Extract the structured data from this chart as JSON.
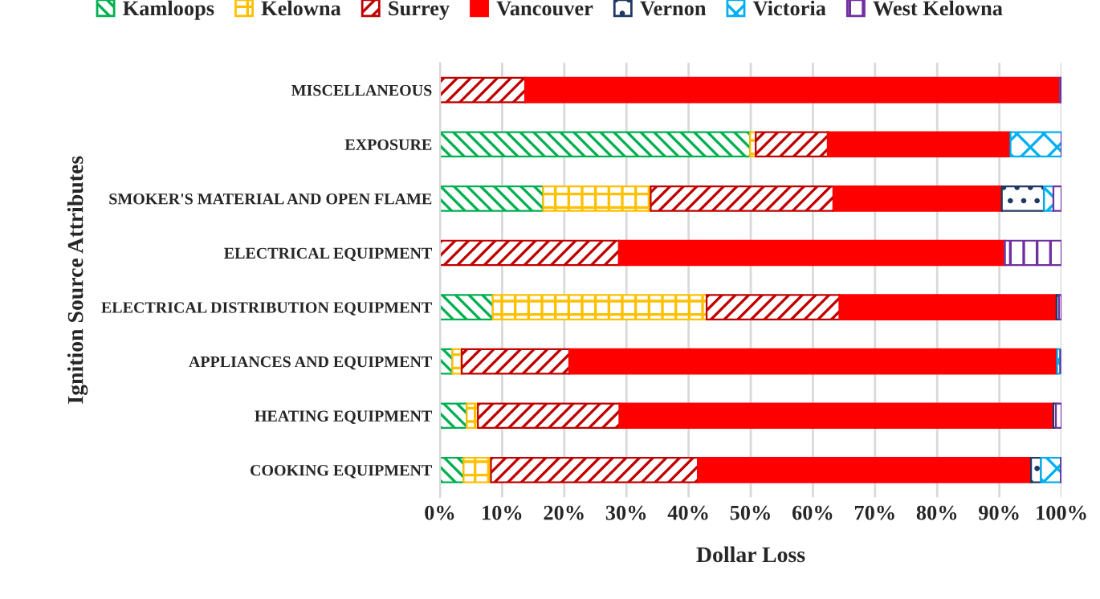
{
  "chart_data": {
    "type": "bar",
    "orientation": "horizontal",
    "stacked": true,
    "xlabel": "Dollar Loss",
    "ylabel": "Ignition Source Attributes",
    "categories": [
      "MISCELLANEOUS",
      "EXPOSURE",
      "SMOKER'S MATERIAL AND OPEN FLAME",
      "ELECTRICAL EQUIPMENT",
      "ELECTRICAL DISTRIBUTION EQUIPMENT",
      "APPLIANCES AND EQUIPMENT",
      "HEATING EQUIPMENT",
      "COOKING EQUIPMENT"
    ],
    "series": [
      {
        "name": "Kamloops",
        "color": "#00b050",
        "values": [
          0,
          49.9,
          16.6,
          0,
          8.5,
          2.0,
          4.3,
          3.8
        ]
      },
      {
        "name": "Kelowna",
        "color": "#ffc000",
        "values": [
          0,
          0.9,
          17.3,
          0,
          34.4,
          1.5,
          1.8,
          4.4
        ]
      },
      {
        "name": "Surrey",
        "color": "#c00000",
        "values": [
          13.7,
          11.6,
          29.4,
          28.8,
          21.4,
          17.3,
          22.8,
          33.3
        ]
      },
      {
        "name": "Vancouver",
        "color": "#ff0000",
        "values": [
          86.1,
          29.4,
          27.1,
          62.1,
          34.9,
          78.5,
          69.8,
          53.6
        ]
      },
      {
        "name": "Vernon",
        "color": "#1f3864",
        "values": [
          0,
          0,
          6.8,
          0,
          0.4,
          null,
          0.4,
          1.6
        ]
      },
      {
        "name": "Victoria",
        "color": "#00b0f0",
        "values": [
          0,
          8.2,
          1.5,
          0,
          0,
          0.5,
          0,
          3.2
        ]
      },
      {
        "name": "West Kelowna",
        "color": "#7030a0",
        "values": [
          0.2,
          0,
          1.3,
          9.1,
          0.4,
          0,
          0.9,
          0.1
        ]
      }
    ],
    "xlim": [
      0,
      100
    ],
    "xticks": [
      {
        "value": 0,
        "label": "0%"
      },
      {
        "value": 10,
        "label": "10%"
      },
      {
        "value": 20,
        "label": "20%"
      },
      {
        "value": 30,
        "label": "30%"
      },
      {
        "value": 40,
        "label": "40%"
      },
      {
        "value": 50,
        "label": "50%"
      },
      {
        "value": 60,
        "label": "60%"
      },
      {
        "value": 70,
        "label": "70%"
      },
      {
        "value": 80,
        "label": "80%"
      },
      {
        "value": 90,
        "label": "90%"
      },
      {
        "value": 100,
        "label": "100%"
      }
    ],
    "grid": "x",
    "legend": "top"
  }
}
